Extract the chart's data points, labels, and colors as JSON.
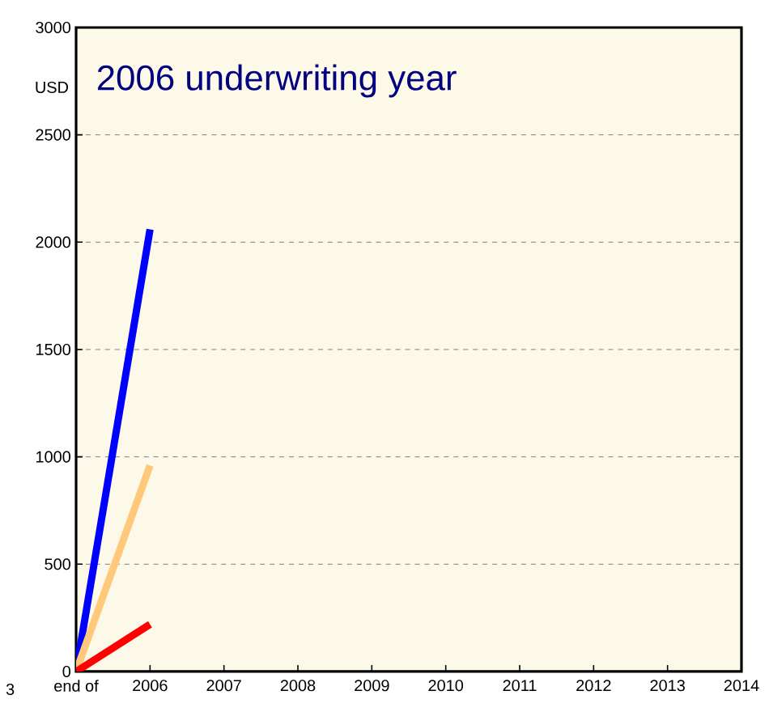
{
  "chart_data": {
    "type": "line",
    "title": "2006 underwriting year",
    "ylabel": "USD",
    "x": [
      2005,
      2006
    ],
    "series": [
      {
        "color": "#0000ff",
        "values": [
          0,
          2060
        ]
      },
      {
        "color": "#ffc87a",
        "values": [
          0,
          960
        ]
      },
      {
        "color": "#ff0000",
        "values": [
          0,
          220
        ]
      }
    ],
    "xlim": [
      2005,
      2014
    ],
    "xticks": [
      {
        "value": 2005,
        "label": "end of"
      },
      2006,
      2007,
      2008,
      2009,
      2010,
      2011,
      2012,
      2013,
      2014
    ],
    "ylim": [
      0,
      3000
    ],
    "yticks": [
      0,
      500,
      1000,
      1500,
      2000,
      2500,
      3000
    ],
    "grid": "y",
    "marker": "none",
    "line_style": "solid",
    "annotations": [
      "3"
    ]
  }
}
